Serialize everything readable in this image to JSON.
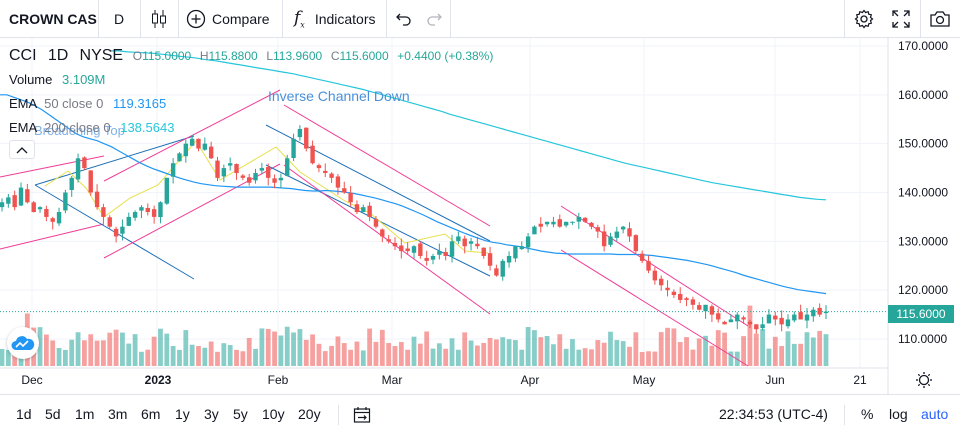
{
  "toolbar": {
    "symbol": "CROWN CAS",
    "interval": "D",
    "compare_label": "Compare",
    "indicators_label": "Indicators"
  },
  "legend": {
    "ticker": "CCI",
    "interval": "1D",
    "exchange": "NYSE",
    "open_label": "O",
    "open": "115.0000",
    "high_label": "H",
    "high": "115.8800",
    "low_label": "L",
    "low": "113.9600",
    "close_label": "C",
    "close": "115.6000",
    "change": "+0.4400 (+0.38%)",
    "volume_label": "Volume",
    "volume": "3.109M",
    "ema50_label": "EMA",
    "ema50_params": "50 close 0",
    "ema50_value": "119.3165",
    "ema200_label": "EMA",
    "ema200_params": "200 close 0",
    "ema200_value": "138.5643"
  },
  "annotations": {
    "inverse_channel": "Inverse Channel Down",
    "broadening_top": "Broadening Top"
  },
  "price_axis": {
    "labels": [
      "170.0000",
      "160.0000",
      "150.0000",
      "140.0000",
      "130.0000",
      "120.0000",
      "110.0000"
    ],
    "current_price": "115.6000"
  },
  "time_axis": {
    "labels": [
      "Dec",
      "2023",
      "Feb",
      "Mar",
      "Apr",
      "May",
      "Jun",
      "21"
    ]
  },
  "bottom": {
    "ranges": [
      "1d",
      "5d",
      "1m",
      "3m",
      "6m",
      "1y",
      "3y",
      "5y",
      "10y",
      "20y"
    ],
    "time": "22:34:53 (UTC-4)",
    "percent": "%",
    "log": "log",
    "auto": "auto"
  },
  "colors": {
    "up": "#26a69a",
    "down": "#ef5350",
    "ema50": "#2196f3",
    "ema200": "#26c6da",
    "pattern_pink": "#f03c96",
    "pattern_blue": "#1e6fb5",
    "pattern_yellow": "#e6e04a",
    "accent": "#2962ff"
  },
  "chart_data": {
    "type": "candlestick",
    "ylim": [
      105,
      172
    ],
    "y_ticks": [
      170,
      160,
      150,
      140,
      130,
      120,
      110
    ],
    "closes": [
      138,
      139,
      137,
      141,
      138,
      136,
      137,
      135,
      134,
      136,
      140,
      143,
      147,
      145,
      140,
      137,
      135,
      133,
      131,
      133,
      135,
      136,
      137,
      136,
      135,
      138,
      143,
      146,
      148,
      150,
      151,
      149,
      150,
      147,
      143,
      145,
      146,
      144,
      143,
      142,
      144,
      145,
      143,
      142,
      143,
      147,
      151,
      153,
      149,
      146,
      145,
      144,
      143,
      141,
      140,
      138,
      136,
      137,
      135,
      133,
      131,
      130,
      129,
      128,
      128,
      129,
      127,
      126,
      127,
      128,
      127,
      130,
      131,
      129,
      130,
      129,
      127,
      125,
      123,
      126,
      127,
      129,
      129,
      131,
      133,
      133,
      134,
      134,
      133,
      134,
      134,
      135,
      134,
      133,
      132,
      129,
      131,
      132,
      133,
      131,
      128,
      126,
      124,
      122,
      121,
      120,
      119,
      118,
      118,
      117,
      116,
      117,
      115,
      114,
      113,
      114,
      115,
      114,
      113,
      112,
      113,
      115,
      114,
      113,
      114,
      115,
      114,
      115,
      116,
      115,
      115.6
    ],
    "ema50": [
      160,
      160,
      159.5,
      159,
      158.5,
      157.8,
      157,
      156,
      155,
      154,
      153,
      152,
      151.4,
      151,
      150.6,
      150,
      149.4,
      148.6,
      147.8,
      147,
      146.2,
      145.5,
      144.9,
      144.4,
      143.9,
      143.4,
      142.9,
      142.5,
      142.1,
      141.8,
      141.6,
      141.4,
      141.3,
      141.2,
      141.1,
      141.1,
      141.1,
      141.1,
      141.1,
      141.1,
      141,
      140.9,
      140.8,
      140.6,
      140.4,
      140.3,
      140.3,
      140.4,
      140.3,
      140.2,
      140,
      139.8,
      139.5,
      139.2,
      138.9,
      138.5,
      138.1,
      137.7,
      137.2,
      136.6,
      136,
      135.4,
      134.7,
      134,
      133.4,
      132.8,
      132.2,
      131.6,
      131.1,
      130.6,
      130.1,
      129.8,
      129.6,
      129.3,
      129.1,
      128.9,
      128.6,
      128.3,
      128,
      127.8,
      127.6,
      127.5,
      127.4,
      127.4,
      127.4,
      127.4,
      127.4,
      127.4,
      127.4,
      127.3,
      127.3,
      127.3,
      127.3,
      127.2,
      127.1,
      126.9,
      126.7,
      126.5,
      126.3,
      126.1,
      125.8,
      125.5,
      125.2,
      124.8,
      124.4,
      124,
      123.6,
      123.1,
      122.7,
      122.3,
      121.9,
      121.5,
      121.1,
      120.7,
      120.4,
      120.1,
      119.9,
      119.7,
      119.5,
      119.3
    ],
    "ema200": [
      169,
      169,
      168.8,
      168.7,
      168.6,
      168.5,
      168.3,
      168.1,
      167.9,
      167.7,
      167.5,
      167.2,
      167,
      166.7,
      166.4,
      166.1,
      165.8,
      165.5,
      165.2,
      164.9,
      164.6,
      164.3,
      163.9,
      163.5,
      163.1,
      162.7,
      162.3,
      161.9,
      161.5,
      161.1,
      160.6,
      160.1,
      159.6,
      159.1,
      158.6,
      158.1,
      157.6,
      157.1,
      156.6,
      156,
      155.5,
      155,
      154.5,
      154,
      153.5,
      153,
      152.5,
      152,
      151.5,
      151,
      150.5,
      150,
      149.5,
      149,
      148.5,
      148,
      147.5,
      147,
      146.5,
      146,
      145.6,
      145.2,
      144.8,
      144.4,
      144,
      143.6,
      143.2,
      142.8,
      142.4,
      142,
      141.7,
      141.4,
      141.1,
      140.8,
      140.5,
      140.2,
      139.9,
      139.6,
      139.3,
      139,
      138.8,
      138.6,
      138.5
    ],
    "volume_note": "Volume histogram shown in lower pane"
  }
}
